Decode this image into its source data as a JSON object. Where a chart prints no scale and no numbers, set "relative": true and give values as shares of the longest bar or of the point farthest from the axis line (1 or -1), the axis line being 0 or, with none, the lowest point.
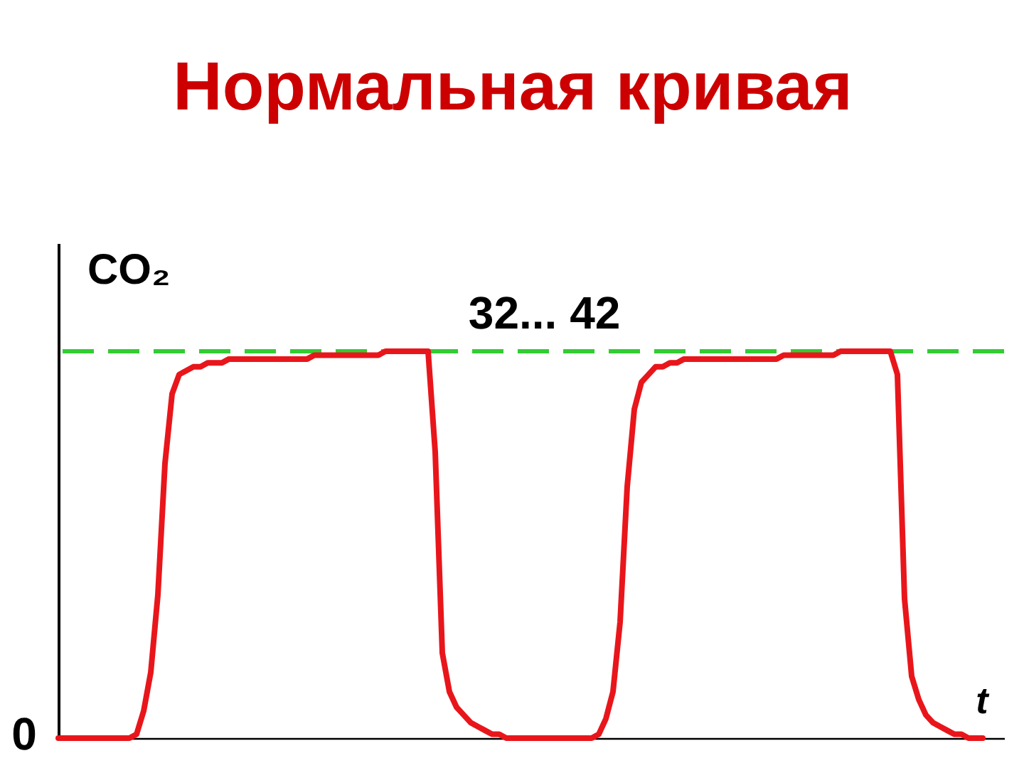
{
  "chart_data": {
    "type": "line",
    "title": "Нормальная кривая",
    "ylabel": "CO₂",
    "xlabel": "t",
    "relative": true,
    "categories": [
      null,
      null,
      null,
      null,
      null,
      null,
      null,
      null,
      null,
      null,
      null,
      null,
      null,
      null,
      null,
      null,
      null,
      null,
      null,
      null,
      null,
      null,
      null,
      null,
      null,
      null,
      null,
      null,
      null,
      null,
      null,
      null,
      null,
      null,
      null,
      null,
      null,
      null,
      null,
      null,
      null,
      null,
      null,
      null,
      null,
      null,
      null,
      null,
      null,
      null,
      null,
      null,
      null,
      null,
      null,
      null,
      null,
      null,
      null,
      null,
      null,
      null,
      null,
      null,
      null,
      null,
      null,
      null,
      null,
      null,
      null,
      null,
      null,
      null,
      null,
      null,
      null,
      null,
      null,
      null,
      null,
      null,
      null,
      null,
      null,
      null,
      null,
      null,
      null,
      null,
      null,
      null,
      null,
      null,
      null,
      null,
      null,
      null,
      null,
      null,
      null,
      null,
      null,
      null,
      null,
      null,
      null,
      null,
      null,
      null,
      null,
      null,
      null,
      null,
      null,
      null,
      null,
      null,
      null,
      null,
      null,
      null,
      null,
      null,
      null,
      null,
      null,
      null,
      null,
      null,
      null
    ],
    "series": [
      {
        "color": "#e8161b",
        "values": [
          0,
          0,
          0,
          0,
          0,
          0,
          0,
          0,
          0,
          0,
          0,
          0.01,
          0.07,
          0.17,
          0.37,
          0.71,
          0.89,
          0.94,
          0.95,
          0.96,
          0.96,
          0.97,
          0.97,
          0.97,
          0.98,
          0.98,
          0.98,
          0.98,
          0.98,
          0.98,
          0.98,
          0.98,
          0.98,
          0.98,
          0.98,
          0.98,
          0.99,
          0.99,
          0.99,
          0.99,
          0.99,
          0.99,
          0.99,
          0.99,
          0.99,
          0.99,
          1,
          1,
          1,
          1,
          1,
          1,
          1,
          0.74,
          0.22,
          0.12,
          0.08,
          0.06,
          0.04,
          0.03,
          0.02,
          0.01,
          0.01,
          0,
          0,
          0,
          0,
          0,
          0,
          0,
          0,
          0,
          0,
          0,
          0,
          0,
          0.01,
          0.05,
          0.12,
          0.3,
          0.65,
          0.85,
          0.92,
          0.94,
          0.96,
          0.96,
          0.97,
          0.97,
          0.98,
          0.98,
          0.98,
          0.98,
          0.98,
          0.98,
          0.98,
          0.98,
          0.98,
          0.98,
          0.98,
          0.98,
          0.98,
          0.98,
          0.99,
          0.99,
          0.99,
          0.99,
          0.99,
          0.99,
          0.99,
          0.99,
          1,
          1,
          1,
          1,
          1,
          1,
          1,
          1,
          0.94,
          0.36,
          0.16,
          0.1,
          0.06,
          0.04,
          0.03,
          0.02,
          0.01,
          0.01,
          0,
          0,
          0
        ]
      }
    ],
    "ref_lines": [
      {
        "axis": "y",
        "value": 1,
        "color": "#33cc33",
        "line_style": "dashed"
      }
    ],
    "annotations": [
      "32... 42",
      "0"
    ]
  }
}
